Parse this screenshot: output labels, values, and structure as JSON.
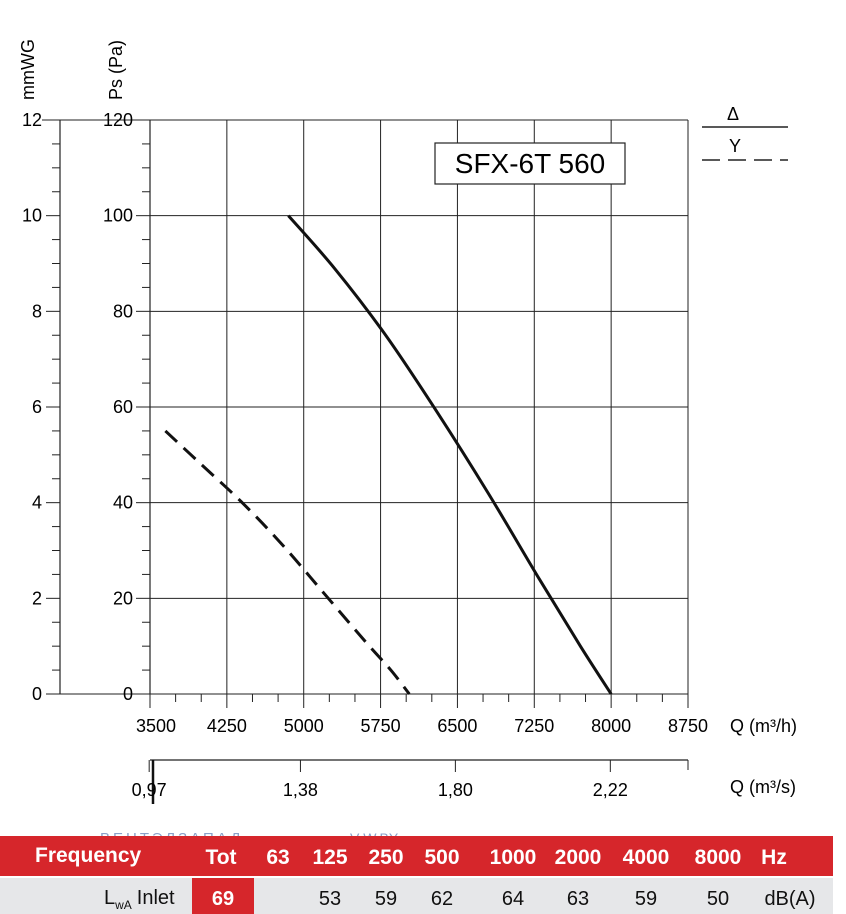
{
  "chart_data": {
    "type": "line",
    "title": "SFX-6T 560",
    "x_axis": {
      "label": "Q (m³/h)",
      "min": 3500,
      "max": 8750,
      "ticks": [
        3500,
        4250,
        5000,
        5750,
        6500,
        7250,
        8000,
        8750
      ],
      "tick_labels": [
        "3500",
        "4250",
        "5000",
        "5750",
        "6500",
        "7250",
        "8000",
        "8750"
      ]
    },
    "x2_axis": {
      "label": "Q (m³/s)",
      "ticks": [
        0.97,
        1.38,
        1.8,
        2.22
      ],
      "tick_labels": [
        "0,97",
        "1,38",
        "1,80",
        "2,22"
      ]
    },
    "y_axis": {
      "label": "Ps (Pa)",
      "min": 0,
      "max": 120,
      "ticks": [
        0,
        20,
        40,
        60,
        80,
        100,
        120
      ],
      "tick_labels": [
        "0",
        "20",
        "40",
        "60",
        "80",
        "100",
        "120"
      ]
    },
    "y2_axis": {
      "label": "mmWG",
      "ticks": [
        0,
        2,
        4,
        6,
        8,
        10,
        12
      ],
      "tick_labels": [
        "0",
        "2",
        "4",
        "6",
        "8",
        "10",
        "12"
      ]
    },
    "grid": true,
    "legend": {
      "position": "top-right",
      "entries": [
        {
          "label": "Δ",
          "style": "solid"
        },
        {
          "label": "Y",
          "style": "dashed"
        }
      ]
    },
    "series": [
      {
        "name": "Δ",
        "style": "solid",
        "x": [
          4850,
          5300,
          5800,
          6300,
          6800,
          7300,
          7700,
          8000
        ],
        "y": [
          100,
          89,
          75,
          59,
          42,
          24,
          10,
          0
        ]
      },
      {
        "name": "Y",
        "style": "dashed",
        "x": [
          3650,
          4000,
          4400,
          4800,
          5200,
          5600,
          5850,
          6030
        ],
        "y": [
          55,
          48,
          40,
          31,
          21,
          11,
          5,
          0
        ]
      }
    ]
  },
  "watermark": {
    "left": "ВЕНТЭЛЗАПАД",
    "right": "V-W.BY"
  },
  "table": {
    "header_label": "Frequency",
    "total_label": "Tot",
    "frequencies": [
      "63",
      "125",
      "250",
      "500",
      "1000",
      "2000",
      "4000",
      "8000"
    ],
    "unit_hz": "Hz",
    "row_label_main": "L",
    "row_label_sub": "wA",
    "row_label_rest": "Inlet",
    "total_value": "69",
    "values": [
      "",
      "53",
      "59",
      "62",
      "64",
      "63",
      "59",
      "50"
    ],
    "unit_db": "dB(A)"
  },
  "colors": {
    "header_red": "#d6262b",
    "row_gray": "#e6e7e9",
    "grid": "#222222",
    "curve": "#111111",
    "watermark": "#8aa0c8"
  }
}
